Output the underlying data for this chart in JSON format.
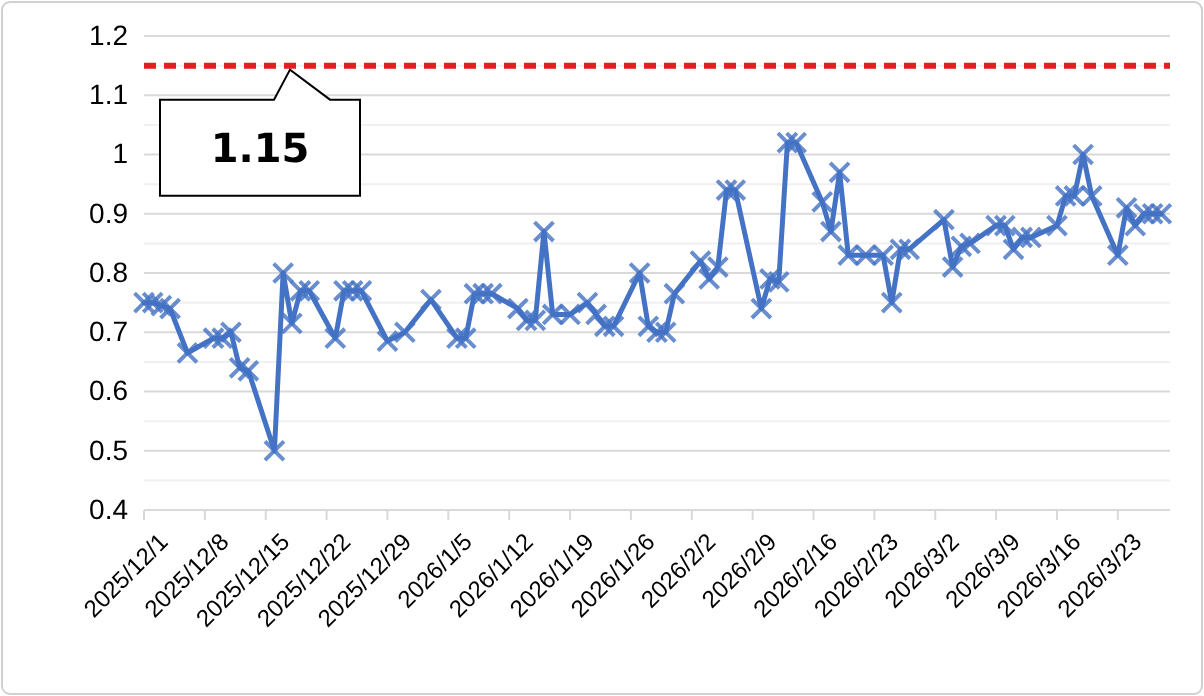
{
  "chart_data": {
    "type": "line",
    "marker": "cross",
    "grid": "y",
    "x": [
      "2025-12-01",
      "2025-12-02",
      "2025-12-03",
      "2025-12-04",
      "2025-12-06",
      "2025-12-09",
      "2025-12-10",
      "2025-12-11",
      "2025-12-12",
      "2025-12-13",
      "2025-12-16",
      "2025-12-17",
      "2025-12-18",
      "2025-12-19",
      "2025-12-20",
      "2025-12-23",
      "2025-12-24",
      "2025-12-25",
      "2025-12-26",
      "2025-12-29",
      "2025-12-31",
      "2026-01-03",
      "2026-01-06",
      "2026-01-07",
      "2026-01-08",
      "2026-01-09",
      "2026-01-10",
      "2026-01-13",
      "2026-01-14",
      "2026-01-15",
      "2026-01-16",
      "2026-01-17",
      "2026-01-19",
      "2026-01-21",
      "2026-01-22",
      "2026-01-23",
      "2026-01-24",
      "2026-01-27",
      "2026-01-28",
      "2026-01-29",
      "2026-01-30",
      "2026-01-31",
      "2026-02-03",
      "2026-02-04",
      "2026-02-05",
      "2026-02-06",
      "2026-02-07",
      "2026-02-10",
      "2026-02-11",
      "2026-02-12",
      "2026-02-13",
      "2026-02-14",
      "2026-02-17",
      "2026-02-18",
      "2026-02-19",
      "2026-02-20",
      "2026-02-22",
      "2026-02-24",
      "2026-02-25",
      "2026-02-26",
      "2026-02-27",
      "2026-03-03",
      "2026-03-04",
      "2026-03-05",
      "2026-03-06",
      "2026-03-09",
      "2026-03-10",
      "2026-03-11",
      "2026-03-12",
      "2026-03-13",
      "2026-03-16",
      "2026-03-17",
      "2026-03-18",
      "2026-03-19",
      "2026-03-20",
      "2026-03-23",
      "2026-03-24",
      "2026-03-25",
      "2026-03-26",
      "2026-03-27",
      "2026-03-28"
    ],
    "series": [
      {
        "color": "#4472c4",
        "values": [
          0.75,
          0.75,
          0.745,
          0.74,
          0.665,
          0.69,
          0.69,
          0.7,
          0.64,
          0.635,
          0.5,
          0.8,
          0.715,
          0.77,
          0.77,
          0.69,
          0.77,
          0.77,
          0.77,
          0.685,
          0.7,
          0.755,
          0.69,
          0.69,
          0.765,
          0.765,
          0.765,
          0.74,
          0.72,
          0.72,
          0.87,
          0.73,
          0.73,
          0.75,
          0.73,
          0.71,
          0.71,
          0.8,
          0.71,
          0.7,
          0.7,
          0.765,
          0.82,
          0.79,
          0.81,
          0.94,
          0.94,
          0.74,
          0.79,
          0.785,
          1.02,
          1.02,
          0.92,
          0.87,
          0.97,
          0.83,
          0.83,
          0.83,
          0.75,
          0.84,
          0.84,
          0.89,
          0.81,
          0.845,
          0.85,
          0.88,
          0.88,
          0.84,
          0.86,
          0.86,
          0.88,
          0.93,
          0.93,
          1.0,
          0.93,
          0.83,
          0.91,
          0.88,
          0.9,
          0.9,
          0.9
        ]
      }
    ],
    "xlim": [
      "2025-12-01",
      "2026-03-29"
    ],
    "xticks": [
      {
        "value": "2025-12-01",
        "label": "2025/12/1"
      },
      {
        "value": "2025-12-08",
        "label": "2025/12/8"
      },
      {
        "value": "2025-12-15",
        "label": "2025/12/15"
      },
      {
        "value": "2025-12-22",
        "label": "2025/12/22"
      },
      {
        "value": "2025-12-29",
        "label": "2025/12/29"
      },
      {
        "value": "2026-01-05",
        "label": "2026/1/5"
      },
      {
        "value": "2026-01-12",
        "label": "2026/1/12"
      },
      {
        "value": "2026-01-19",
        "label": "2026/1/19"
      },
      {
        "value": "2026-01-26",
        "label": "2026/1/26"
      },
      {
        "value": "2026-02-02",
        "label": "2026/2/2"
      },
      {
        "value": "2026-02-09",
        "label": "2026/2/9"
      },
      {
        "value": "2026-02-16",
        "label": "2026/2/16"
      },
      {
        "value": "2026-02-23",
        "label": "2026/2/23"
      },
      {
        "value": "2026-03-02",
        "label": "2026/3/2"
      },
      {
        "value": "2026-03-09",
        "label": "2026/3/9"
      },
      {
        "value": "2026-03-16",
        "label": "2026/3/16"
      },
      {
        "value": "2026-03-23",
        "label": "2026/3/23"
      }
    ],
    "ylim": [
      0.4,
      1.2
    ],
    "yticks": [
      0.4,
      {
        "value": 0.45,
        "label": null
      },
      0.5,
      {
        "value": 0.55,
        "label": null
      },
      0.6,
      {
        "value": 0.65,
        "label": null
      },
      0.7,
      {
        "value": 0.75,
        "label": null
      },
      0.8,
      {
        "value": 0.85,
        "label": null
      },
      0.9,
      {
        "value": 0.95,
        "label": null
      },
      1,
      {
        "value": 1.05,
        "label": null
      },
      1.1,
      {
        "value": 1.15,
        "label": null
      },
      1.2
    ],
    "ref_lines": [
      {
        "axis": "y",
        "value": 1.15,
        "label": "1.15",
        "color": "#e02020",
        "line_style": "dashed"
      }
    ]
  }
}
